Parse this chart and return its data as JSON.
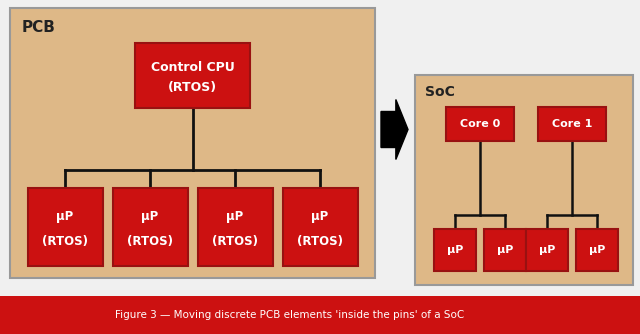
{
  "bg_color": "#f0f0f0",
  "pcb_box_color": "#deb887",
  "pcb_box_edge": "#999999",
  "soc_box_color": "#deb887",
  "soc_box_edge": "#999999",
  "red_box_color": "#cc1111",
  "red_box_edge": "#991111",
  "white_text": "#ffffff",
  "dark_text": "#222222",
  "line_color": "#111111",
  "footer_bg": "#cc1111",
  "footer_text": "#ffffff",
  "footer_label": "Figure 3 — Moving discrete PCB elements 'inside the pins' of a SoC",
  "pcb_label": "PCB",
  "soc_label": "SoC",
  "cpu_line1": "Control CPU",
  "cpu_line2": "(RTOS)",
  "up_label": "μP",
  "up_rtos": "(RTOS)",
  "core0": "Core 0",
  "core1": "Core 1"
}
